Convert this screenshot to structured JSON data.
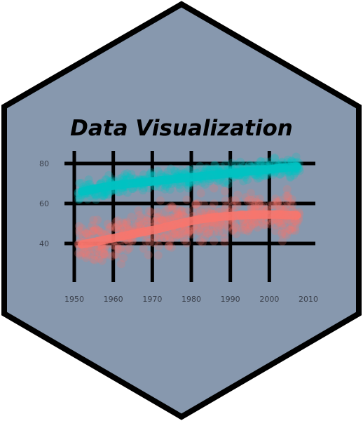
{
  "sticker": {
    "title": "Data Visualization",
    "background_color": "#8798ae",
    "border_color": "#000000"
  },
  "chart_data": {
    "type": "scatter",
    "title": "",
    "xlabel": "",
    "ylabel": "",
    "x_ticks": [
      "1950",
      "1960",
      "1970",
      "1980",
      "1990",
      "2000",
      "2010"
    ],
    "y_ticks": [
      "40",
      "60",
      "80"
    ],
    "xlim": [
      1950,
      2010
    ],
    "ylim": [
      30,
      85
    ],
    "grid": true,
    "series": [
      {
        "color": "#00c2c2",
        "trend_x": [
          1952,
          1957,
          1962,
          1967,
          1972,
          1977,
          1982,
          1987,
          1992,
          1997,
          2002,
          2007
        ],
        "trend_y": [
          66,
          68,
          69.5,
          70.5,
          71.5,
          72.5,
          73.5,
          74.5,
          75.5,
          76.5,
          77.5,
          78.5
        ]
      },
      {
        "color": "#f8766d",
        "trend_x": [
          1952,
          1957,
          1962,
          1967,
          1972,
          1977,
          1982,
          1987,
          1992,
          1997,
          2002,
          2007
        ],
        "trend_y": [
          39.5,
          41.5,
          43.5,
          45.5,
          47.5,
          50,
          52,
          53.3,
          54,
          54.5,
          54.5,
          54
        ]
      }
    ]
  }
}
